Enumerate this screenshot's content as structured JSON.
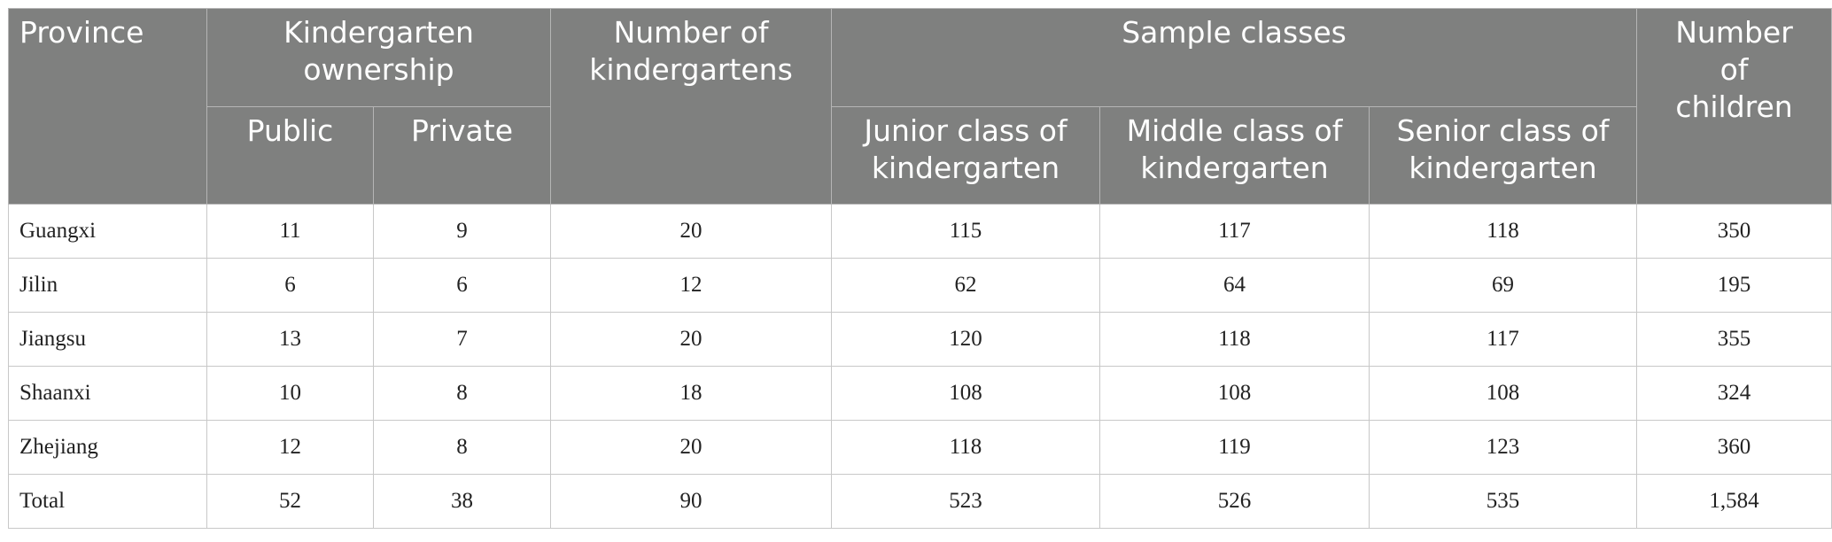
{
  "table": {
    "header": {
      "province": "Province",
      "ownership": "Kindergarten ownership",
      "public": "Public",
      "private": "Private",
      "number_of_kindergartens": "Number of kindergartens",
      "sample_classes": "Sample classes",
      "junior": "Junior class of kindergarten",
      "middle": "Middle class of kindergarten",
      "senior": "Senior class of kindergarten",
      "number_of_children": "Number of children"
    },
    "rows": [
      [
        "Guangxi",
        "11",
        "9",
        "20",
        "115",
        "117",
        "118",
        "350"
      ],
      [
        "Jilin",
        "6",
        "6",
        "12",
        "62",
        "64",
        "69",
        "195"
      ],
      [
        "Jiangsu",
        "13",
        "7",
        "20",
        "120",
        "118",
        "117",
        "355"
      ],
      [
        "Shaanxi",
        "10",
        "8",
        "18",
        "108",
        "108",
        "108",
        "324"
      ],
      [
        "Zhejiang",
        "12",
        "8",
        "20",
        "118",
        "119",
        "123",
        "360"
      ],
      [
        "Total",
        "52",
        "38",
        "90",
        "523",
        "526",
        "535",
        "1,584"
      ]
    ]
  }
}
